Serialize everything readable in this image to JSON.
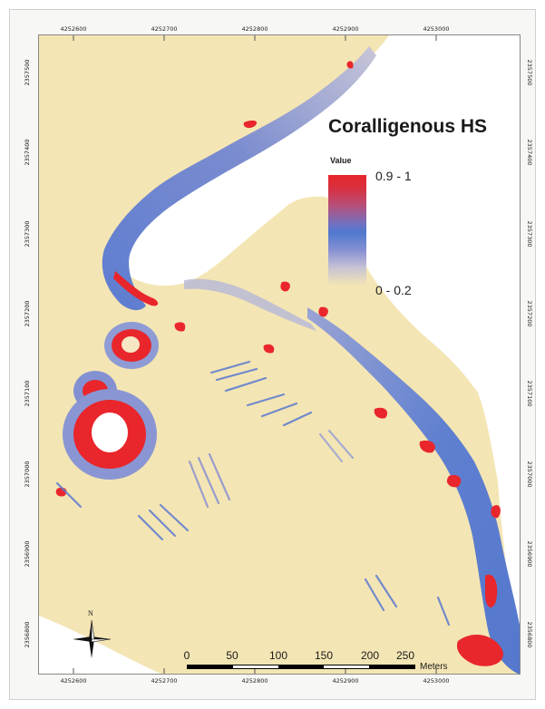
{
  "legend": {
    "title": "Coralligenous HS",
    "field": "Value",
    "high_label": "0.9 - 1",
    "low_label": "0 - 0.2",
    "colors": {
      "high": "#e8262b",
      "mid": "#4f78cf",
      "low": "#f4e5b4"
    }
  },
  "grid": {
    "x_ticks": [
      "4252600",
      "4252700",
      "4252800",
      "4252900",
      "4253000"
    ],
    "y_ticks": [
      "2357500",
      "2357400",
      "2357300",
      "2357200",
      "2357100",
      "2357000",
      "2356900",
      "2356800"
    ]
  },
  "scalebar": {
    "labels": [
      "0",
      "50",
      "100",
      "150",
      "200",
      "250"
    ],
    "units": "Meters"
  },
  "north_arrow": {
    "label": "N",
    "icon": "north-arrow-icon"
  },
  "colors": {
    "sand": "#f4e5b4",
    "blue": "#4f78cf",
    "light_blue": "#a2acd6",
    "red": "#e8262b"
  }
}
